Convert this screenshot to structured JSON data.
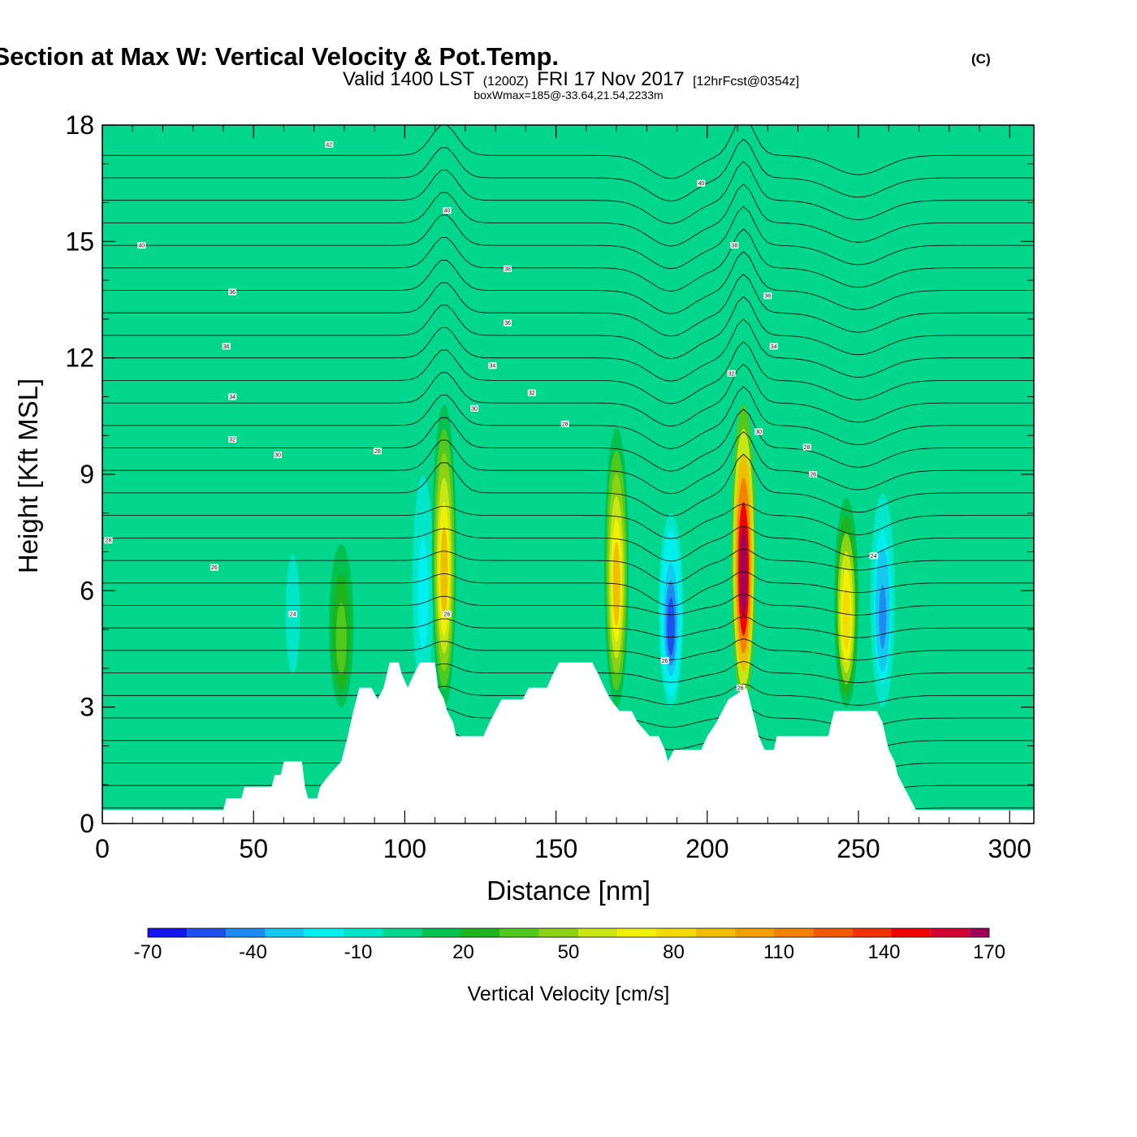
{
  "title": {
    "main": "Wind-Parallel Section at Max W: Vertical Velocity & Pot.Temp.",
    "copyright": "(C)",
    "valid_prefix": "Valid 1400 LST",
    "valid_utc": "(1200Z)",
    "valid_date": "FRI 17 Nov 2017",
    "forecast": "[12hrFcst@0354z]",
    "box_max": "boxWmax=185@-33.64,21.54,2233m"
  },
  "chart_data": {
    "type": "heatmap",
    "title": "Wind-Parallel Section at Max W: Vertical Velocity & Pot.Temp.",
    "xlabel": "Distance [nm]",
    "ylabel": "Height [Kft MSL]",
    "xlim": [
      0,
      308
    ],
    "ylim": [
      0,
      18
    ],
    "x_ticks": [
      0,
      50,
      100,
      150,
      200,
      250,
      300
    ],
    "x_tick_labels": [
      "0",
      "50",
      "100",
      "150",
      "200",
      "250",
      "300"
    ],
    "y_ticks": [
      0,
      3,
      6,
      9,
      12,
      15,
      18
    ],
    "y_tick_labels": [
      "0",
      "3",
      "6",
      "9",
      "12",
      "15",
      "18"
    ],
    "colorbar": {
      "title": "Vertical Velocity [cm/s]",
      "min": -70,
      "max": 170,
      "step": 10,
      "tick_values": [
        -70,
        -40,
        -10,
        20,
        50,
        80,
        110,
        140,
        170
      ],
      "tick_labels": [
        "-70",
        "-40",
        "-10",
        "20",
        "50",
        "80",
        "110",
        "140",
        "170"
      ],
      "colors": [
        "#1414f0",
        "#1e50f0",
        "#1e8cf0",
        "#14c8f0",
        "#00f0f0",
        "#00e6c8",
        "#00d68c",
        "#00c050",
        "#1eb41e",
        "#50c81e",
        "#8cd214",
        "#c8e614",
        "#f0f000",
        "#f0dc00",
        "#f0be00",
        "#f0a000",
        "#f08200",
        "#f05a00",
        "#f03200",
        "#f00000",
        "#d20032",
        "#a0005a"
      ]
    },
    "vertical_velocity_features": [
      {
        "x": 63,
        "top": 8.3,
        "peak": -15
      },
      {
        "x": 79,
        "top": 7.2,
        "peak": 25
      },
      {
        "x": 106,
        "top": 9.5,
        "peak": -25
      },
      {
        "x": 113,
        "top": 10.8,
        "peak": 70
      },
      {
        "x": 170,
        "top": 10.2,
        "peak": 70
      },
      {
        "x": 188,
        "top": 8.0,
        "peak": -55
      },
      {
        "x": 212,
        "top": 10.8,
        "peak": 145
      },
      {
        "x": 246,
        "top": 8.4,
        "peak": 65
      },
      {
        "x": 258,
        "top": 8.5,
        "peak": -45
      }
    ],
    "terrain_kft": [
      [
        0,
        0.35
      ],
      [
        40,
        0.35
      ],
      [
        41,
        0.65
      ],
      [
        46,
        0.65
      ],
      [
        47,
        0.95
      ],
      [
        56,
        0.95
      ],
      [
        57,
        1.25
      ],
      [
        59,
        1.25
      ],
      [
        60,
        1.6
      ],
      [
        66,
        1.6
      ],
      [
        67,
        0.95
      ],
      [
        68,
        0.65
      ],
      [
        71,
        0.65
      ],
      [
        72,
        0.95
      ],
      [
        75,
        1.25
      ],
      [
        79,
        1.6
      ],
      [
        81,
        2.2
      ],
      [
        83,
        2.9
      ],
      [
        85,
        3.5
      ],
      [
        89,
        3.5
      ],
      [
        91,
        3.2
      ],
      [
        93,
        3.5
      ],
      [
        95,
        4.15
      ],
      [
        98,
        4.15
      ],
      [
        99,
        3.85
      ],
      [
        101,
        3.5
      ],
      [
        103,
        3.85
      ],
      [
        105,
        4.15
      ],
      [
        110,
        4.15
      ],
      [
        111,
        3.5
      ],
      [
        113,
        3.2
      ],
      [
        114,
        2.9
      ],
      [
        116,
        2.6
      ],
      [
        117,
        2.25
      ],
      [
        126,
        2.25
      ],
      [
        128,
        2.6
      ],
      [
        130,
        2.9
      ],
      [
        132,
        3.2
      ],
      [
        139,
        3.2
      ],
      [
        141,
        3.5
      ],
      [
        147,
        3.5
      ],
      [
        149,
        3.85
      ],
      [
        151,
        4.15
      ],
      [
        162,
        4.15
      ],
      [
        164,
        3.85
      ],
      [
        166,
        3.5
      ],
      [
        168,
        3.2
      ],
      [
        171,
        2.9
      ],
      [
        175,
        2.9
      ],
      [
        177,
        2.6
      ],
      [
        181,
        2.25
      ],
      [
        184,
        2.25
      ],
      [
        186,
        1.9
      ],
      [
        187,
        1.6
      ],
      [
        189,
        1.9
      ],
      [
        198,
        1.9
      ],
      [
        200,
        2.25
      ],
      [
        203,
        2.6
      ],
      [
        205,
        2.9
      ],
      [
        207,
        3.2
      ],
      [
        213,
        3.5
      ],
      [
        214,
        3.2
      ],
      [
        216,
        2.6
      ],
      [
        217,
        2.25
      ],
      [
        219,
        1.9
      ],
      [
        222,
        1.9
      ],
      [
        223,
        2.25
      ],
      [
        240,
        2.25
      ],
      [
        241,
        2.6
      ],
      [
        242,
        2.9
      ],
      [
        256,
        2.9
      ],
      [
        258,
        2.6
      ],
      [
        259,
        2.25
      ],
      [
        260,
        1.9
      ],
      [
        262,
        1.6
      ],
      [
        263,
        1.25
      ],
      [
        265,
        0.95
      ],
      [
        267,
        0.65
      ],
      [
        269,
        0.35
      ],
      [
        308,
        0.35
      ]
    ],
    "theta_contour_labels": [
      {
        "x": 75,
        "y": 17.5,
        "text": "42"
      },
      {
        "x": 198,
        "y": 16.5,
        "text": "40"
      },
      {
        "x": 114,
        "y": 15.8,
        "text": "40"
      },
      {
        "x": 13,
        "y": 14.9,
        "text": "40"
      },
      {
        "x": 209,
        "y": 14.9,
        "text": "38"
      },
      {
        "x": 134,
        "y": 14.3,
        "text": "38"
      },
      {
        "x": 43,
        "y": 13.7,
        "text": "36"
      },
      {
        "x": 220,
        "y": 13.6,
        "text": "36"
      },
      {
        "x": 134,
        "y": 12.9,
        "text": "36"
      },
      {
        "x": 41,
        "y": 12.3,
        "text": "36"
      },
      {
        "x": 222,
        "y": 12.3,
        "text": "34"
      },
      {
        "x": 129,
        "y": 11.8,
        "text": "34"
      },
      {
        "x": 208,
        "y": 11.6,
        "text": "32"
      },
      {
        "x": 43,
        "y": 11.0,
        "text": "34"
      },
      {
        "x": 142,
        "y": 11.1,
        "text": "32"
      },
      {
        "x": 123,
        "y": 10.7,
        "text": "30"
      },
      {
        "x": 153,
        "y": 10.3,
        "text": "28"
      },
      {
        "x": 217,
        "y": 10.1,
        "text": "30"
      },
      {
        "x": 43,
        "y": 9.9,
        "text": "32"
      },
      {
        "x": 233,
        "y": 9.7,
        "text": "28"
      },
      {
        "x": 91,
        "y": 9.6,
        "text": "28"
      },
      {
        "x": 58,
        "y": 9.5,
        "text": "30"
      },
      {
        "x": 235,
        "y": 9.0,
        "text": "26"
      },
      {
        "x": 2,
        "y": 7.3,
        "text": "28"
      },
      {
        "x": 255,
        "y": 6.9,
        "text": "24"
      },
      {
        "x": 37,
        "y": 6.6,
        "text": "26"
      },
      {
        "x": 63,
        "y": 5.4,
        "text": "24"
      },
      {
        "x": 114,
        "y": 5.4,
        "text": "26"
      },
      {
        "x": 186,
        "y": 4.2,
        "text": "26"
      },
      {
        "x": 211,
        "y": 3.5,
        "text": "26"
      }
    ]
  }
}
